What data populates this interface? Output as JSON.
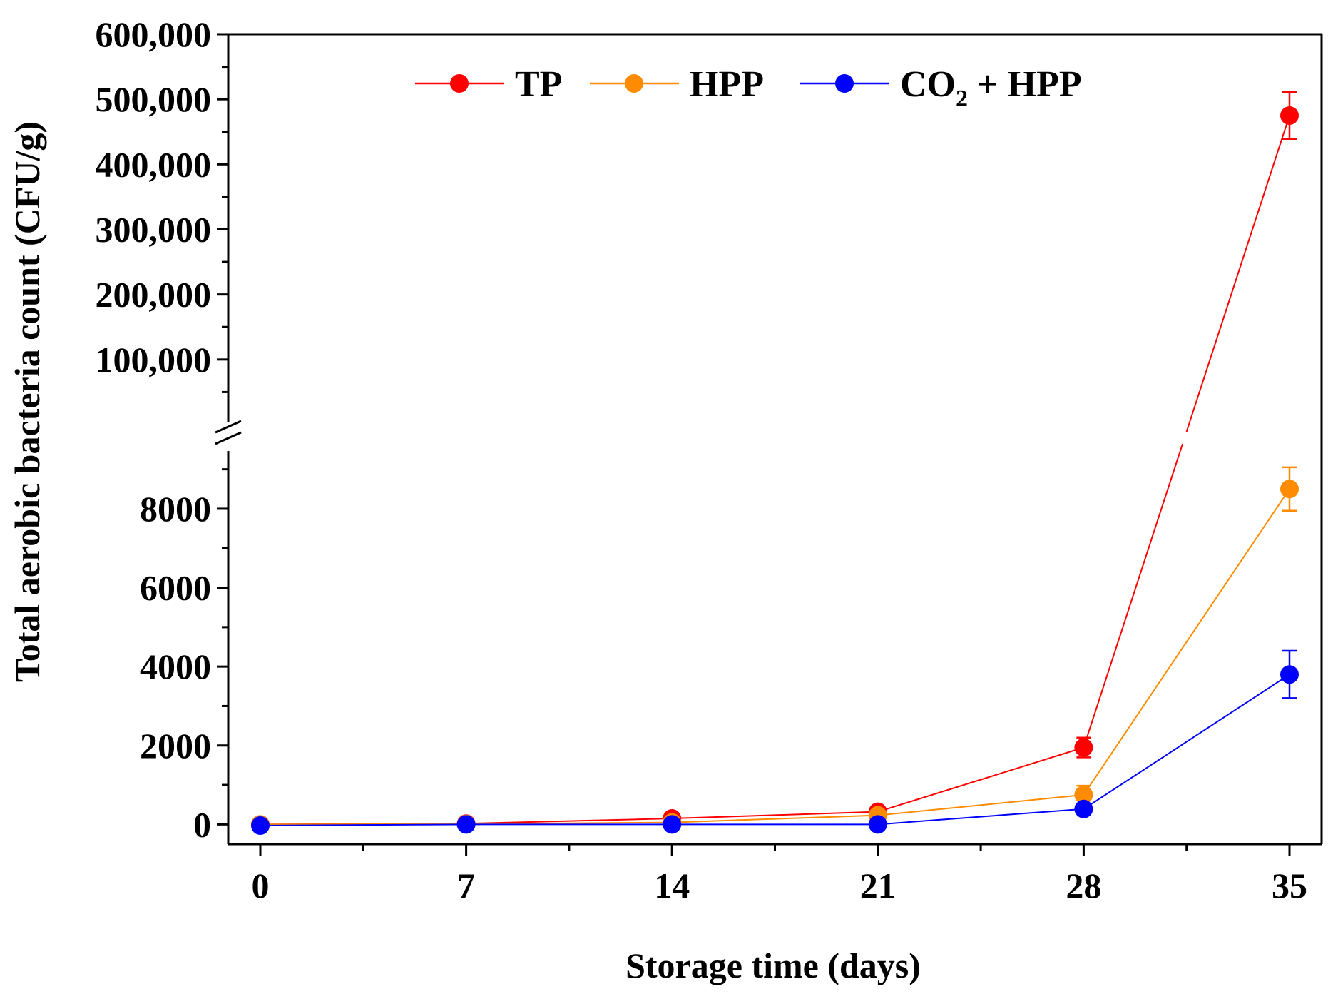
{
  "chart_data": {
    "type": "line",
    "xlabel": "Storage time (days)",
    "ylabel": "Total aerobic bacteria count (CFU/g)",
    "x": [
      0,
      7,
      14,
      21,
      28,
      35
    ],
    "x_tick_labels": [
      "0",
      "7",
      "14",
      "21",
      "28",
      "35"
    ],
    "y_axis_break": true,
    "lower_ylim": [
      -500,
      9500
    ],
    "lower_y_ticks": [
      0,
      2000,
      4000,
      6000,
      8000
    ],
    "lower_y_tick_labels": [
      "0",
      "2000",
      "4000",
      "6000",
      "8000"
    ],
    "upper_ylim": [
      0,
      600000
    ],
    "upper_y_ticks": [
      100000,
      200000,
      300000,
      400000,
      500000,
      600000
    ],
    "upper_y_tick_labels": [
      "100,000",
      "200,000",
      "300,000",
      "400,000",
      "500,000",
      "600,000"
    ],
    "legend": {
      "position": "top-center",
      "entries": [
        {
          "main": "TP",
          "sub": "",
          "tail": ""
        },
        {
          "main": "HPP",
          "sub": "",
          "tail": ""
        },
        {
          "main": "CO",
          "sub": "2",
          "tail": " + HPP"
        }
      ]
    },
    "series": [
      {
        "name": "TP",
        "color": "#ff0000",
        "values": [
          0,
          20,
          150,
          320,
          1950,
          475000
        ],
        "errors": [
          0,
          0,
          50,
          60,
          250,
          36000
        ],
        "error_bars_on": [
          false,
          false,
          false,
          false,
          true,
          true
        ]
      },
      {
        "name": "HPP",
        "color": "#ff8c00",
        "values": [
          0,
          10,
          50,
          230,
          750,
          8500
        ],
        "errors": [
          0,
          0,
          0,
          50,
          230,
          550
        ],
        "error_bars_on": [
          false,
          false,
          false,
          false,
          true,
          true
        ]
      },
      {
        "name": "CO2 + HPP",
        "color": "#0000ff",
        "values": [
          -30,
          0,
          0,
          0,
          390,
          3800
        ],
        "errors": [
          0,
          0,
          0,
          0,
          80,
          600
        ],
        "error_bars_on": [
          false,
          false,
          false,
          false,
          false,
          true
        ]
      }
    ]
  }
}
